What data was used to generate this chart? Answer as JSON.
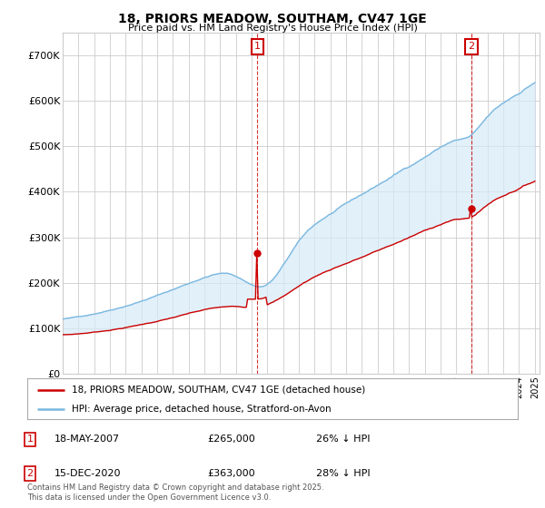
{
  "title": "18, PRIORS MEADOW, SOUTHAM, CV47 1GE",
  "subtitle": "Price paid vs. HM Land Registry's House Price Index (HPI)",
  "hpi_label": "HPI: Average price, detached house, Stratford-on-Avon",
  "price_label": "18, PRIORS MEADOW, SOUTHAM, CV47 1GE (detached house)",
  "annotation1": {
    "num": "1",
    "date": "18-MAY-2007",
    "price": "£265,000",
    "hpi": "26% ↓ HPI"
  },
  "annotation2": {
    "num": "2",
    "date": "15-DEC-2020",
    "price": "£363,000",
    "hpi": "28% ↓ HPI"
  },
  "footer": "Contains HM Land Registry data © Crown copyright and database right 2025.\nThis data is licensed under the Open Government Licence v3.0.",
  "hpi_color": "#7ab8e0",
  "hpi_fill_color": "#d6eaf8",
  "price_color": "#cc0000",
  "annotation_color": "#cc0000",
  "ylim": [
    0,
    750000
  ],
  "yticks": [
    0,
    100000,
    200000,
    300000,
    400000,
    500000,
    600000,
    700000
  ],
  "ytick_labels": [
    "£0",
    "£100K",
    "£200K",
    "£300K",
    "£400K",
    "£500K",
    "£600K",
    "£700K"
  ],
  "year_start": 1995,
  "year_end": 2025,
  "background_color": "#ffffff",
  "grid_color": "#cccccc",
  "sale1_year_val": 2007.373,
  "sale2_year_val": 2020.958,
  "sale1_price": 265000,
  "sale2_price": 363000
}
